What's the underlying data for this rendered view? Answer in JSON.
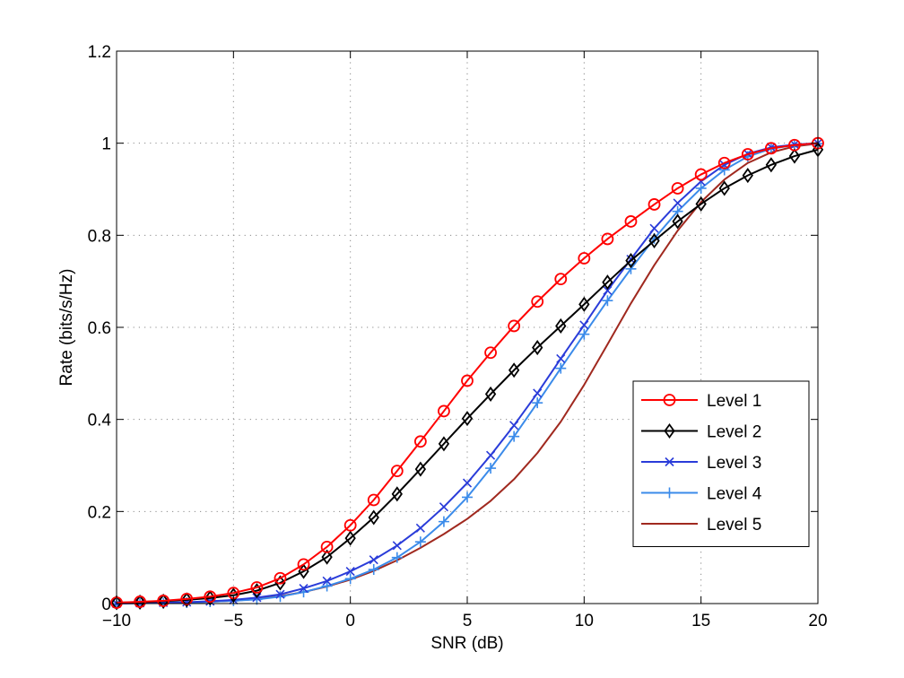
{
  "chart_data": {
    "type": "line",
    "title": "",
    "xlabel": "SNR (dB)",
    "ylabel": "Rate (bits/s/Hz)",
    "xlim": [
      -10,
      20
    ],
    "ylim": [
      0,
      1.2
    ],
    "xticks": [
      -10,
      -5,
      0,
      5,
      10,
      15,
      20
    ],
    "yticks": [
      0,
      0.2,
      0.4,
      0.6,
      0.8,
      1,
      1.2
    ],
    "xtick_labels": [
      "−10",
      "−5",
      "0",
      "5",
      "10",
      "15",
      "20"
    ],
    "ytick_labels": [
      "0",
      "0.2",
      "0.4",
      "0.6",
      "0.8",
      "1",
      "1.2"
    ],
    "grid": true,
    "legend_position": "bottom-right",
    "x": [
      -10,
      -9,
      -8,
      -7,
      -6,
      -5,
      -4,
      -3,
      -2,
      -1,
      0,
      1,
      2,
      3,
      4,
      5,
      6,
      7,
      8,
      9,
      10,
      11,
      12,
      13,
      14,
      15,
      16,
      17,
      18,
      19,
      20
    ],
    "series": [
      {
        "name": "Level 1",
        "color": "#ff0000",
        "marker": "circle",
        "values": [
          0.002,
          0.004,
          0.006,
          0.01,
          0.015,
          0.023,
          0.035,
          0.055,
          0.085,
          0.123,
          0.17,
          0.225,
          0.288,
          0.352,
          0.418,
          0.484,
          0.545,
          0.603,
          0.656,
          0.705,
          0.75,
          0.792,
          0.83,
          0.867,
          0.902,
          0.932,
          0.957,
          0.976,
          0.989,
          0.996,
          1.0
        ]
      },
      {
        "name": "Level 2",
        "color": "#000000",
        "marker": "diamond",
        "values": [
          0.002,
          0.003,
          0.005,
          0.008,
          0.012,
          0.018,
          0.028,
          0.045,
          0.07,
          0.101,
          0.142,
          0.187,
          0.238,
          0.292,
          0.347,
          0.402,
          0.455,
          0.507,
          0.556,
          0.603,
          0.65,
          0.698,
          0.745,
          0.788,
          0.83,
          0.868,
          0.902,
          0.93,
          0.953,
          0.972,
          0.986
        ]
      },
      {
        "name": "Level 3",
        "color": "#2a3cd9",
        "marker": "x",
        "values": [
          0.0,
          0.001,
          0.002,
          0.003,
          0.005,
          0.008,
          0.013,
          0.02,
          0.033,
          0.049,
          0.07,
          0.095,
          0.126,
          0.164,
          0.21,
          0.262,
          0.322,
          0.387,
          0.457,
          0.532,
          0.605,
          0.68,
          0.748,
          0.815,
          0.87,
          0.917,
          0.953,
          0.977,
          0.991,
          0.997,
          1.0
        ]
      },
      {
        "name": "Level 4",
        "color": "#3b8bea",
        "marker": "plus",
        "values": [
          0.0,
          0.001,
          0.001,
          0.002,
          0.004,
          0.006,
          0.009,
          0.015,
          0.025,
          0.038,
          0.054,
          0.074,
          0.1,
          0.134,
          0.178,
          0.231,
          0.294,
          0.363,
          0.436,
          0.511,
          0.585,
          0.658,
          0.727,
          0.793,
          0.852,
          0.902,
          0.942,
          0.971,
          0.988,
          0.996,
          0.999
        ]
      },
      {
        "name": "Level 5",
        "color": "#a0291f",
        "marker": "none",
        "values": [
          0.0,
          0.001,
          0.001,
          0.002,
          0.004,
          0.006,
          0.01,
          0.016,
          0.025,
          0.037,
          0.052,
          0.071,
          0.094,
          0.121,
          0.151,
          0.184,
          0.223,
          0.27,
          0.327,
          0.395,
          0.475,
          0.563,
          0.652,
          0.735,
          0.81,
          0.872,
          0.921,
          0.957,
          0.98,
          0.993,
          0.999
        ]
      }
    ]
  }
}
